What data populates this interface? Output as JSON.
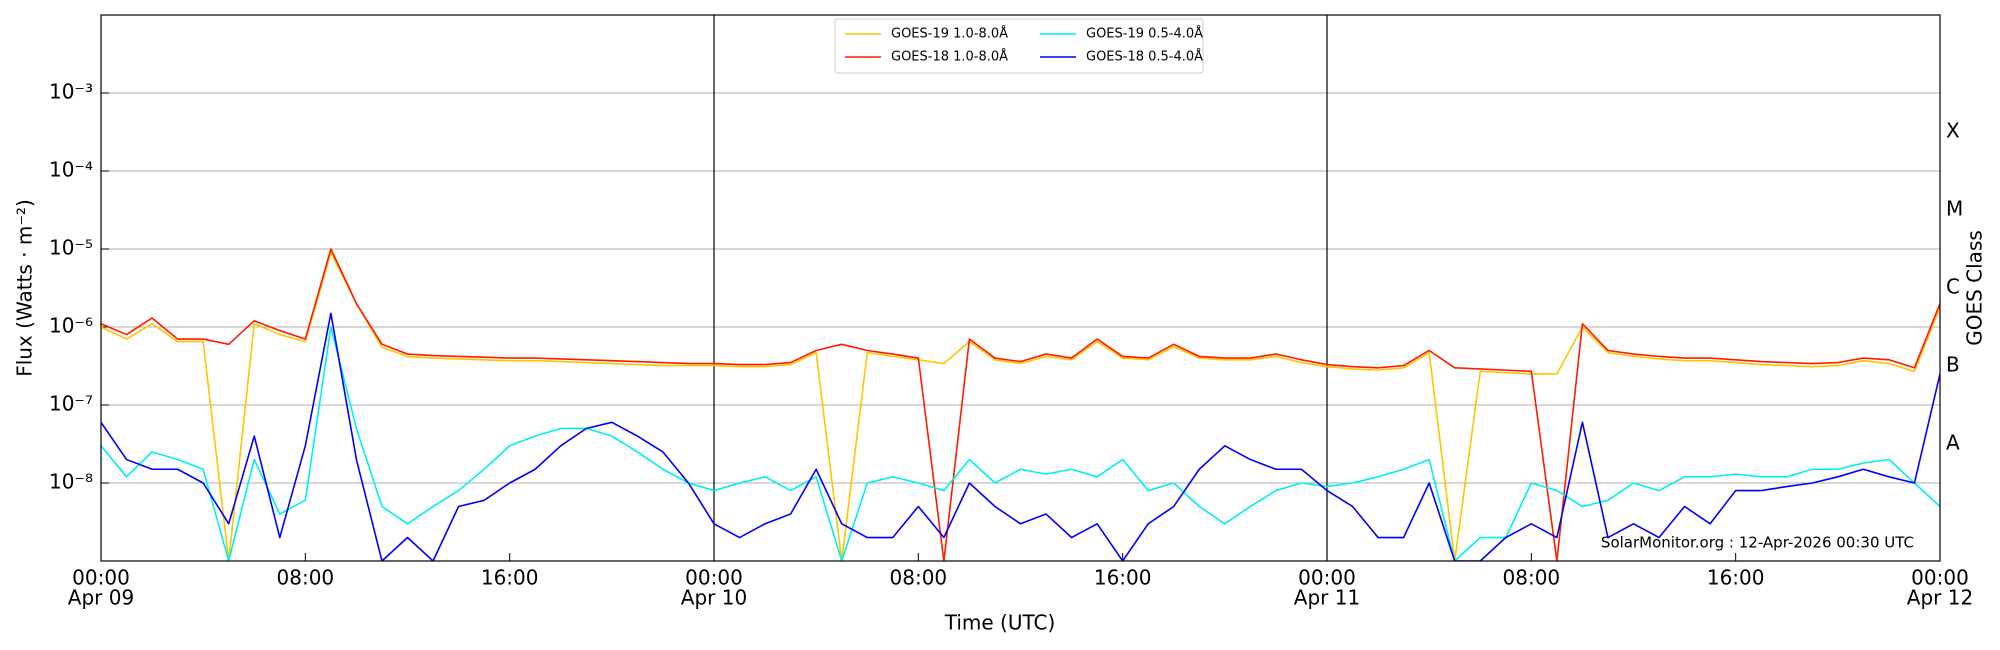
{
  "chart_data": {
    "type": "line",
    "x_label": "Time (UTC)",
    "y_label": "Flux (Watts · m⁻²)",
    "y2_label": "GOES Class",
    "annotation": "SolarMonitor.org : 12-Apr-2026 00:30 UTC",
    "log_scale": true,
    "grid": true,
    "legend_position": "top",
    "xlim": [
      0,
      72
    ],
    "xticks": [
      {
        "value": 0,
        "label": "00:00",
        "date": "Apr 09"
      },
      {
        "value": 8,
        "label": "08:00"
      },
      {
        "value": 16,
        "label": "16:00"
      },
      {
        "value": 24,
        "label": "00:00",
        "date": "Apr 10"
      },
      {
        "value": 32,
        "label": "08:00"
      },
      {
        "value": 40,
        "label": "16:00"
      },
      {
        "value": 48,
        "label": "00:00",
        "date": "Apr 11"
      },
      {
        "value": 56,
        "label": "08:00"
      },
      {
        "value": 64,
        "label": "16:00"
      },
      {
        "value": 72,
        "label": "00:00",
        "date": "Apr 12"
      }
    ],
    "day_lines": [
      24,
      48
    ],
    "ylim": [
      1e-09,
      0.01
    ],
    "yticks": [
      {
        "value": 1e-08,
        "label": "10⁻⁸"
      },
      {
        "value": 1e-07,
        "label": "10⁻⁷"
      },
      {
        "value": 1e-06,
        "label": "10⁻⁶"
      },
      {
        "value": 1e-05,
        "label": "10⁻⁵"
      },
      {
        "value": 0.0001,
        "label": "10⁻⁴"
      },
      {
        "value": 0.001,
        "label": "10⁻³"
      }
    ],
    "y2lim": [
      1e-09,
      0.01
    ],
    "y2ticks": [
      {
        "value": 3.16e-08,
        "label": "A"
      },
      {
        "value": 3.16e-07,
        "label": "B"
      },
      {
        "value": 3.16e-06,
        "label": "C"
      },
      {
        "value": 3.16e-05,
        "label": "M"
      },
      {
        "value": 0.000316,
        "label": "X"
      }
    ],
    "x": [
      0,
      1,
      2,
      3,
      4,
      5,
      6,
      7,
      8,
      9,
      10,
      11,
      12,
      13,
      14,
      15,
      16,
      17,
      18,
      19,
      20,
      21,
      22,
      23,
      24,
      25,
      26,
      27,
      28,
      29,
      30,
      31,
      32,
      33,
      34,
      35,
      36,
      37,
      38,
      39,
      40,
      41,
      42,
      43,
      44,
      45,
      46,
      47,
      48,
      49,
      50,
      51,
      52,
      53,
      54,
      55,
      56,
      57,
      58,
      59,
      60,
      61,
      62,
      63,
      64,
      65,
      66,
      67,
      68,
      69,
      70,
      71,
      72
    ],
    "series": [
      {
        "name": "GOES-19 1.0-8.0Å",
        "color": "#ffc400",
        "values": [
          1e-06,
          7e-07,
          1.1e-06,
          6.5e-07,
          6.5e-07,
          1e-09,
          1.1e-06,
          8e-07,
          6.5e-07,
          9e-06,
          2e-06,
          5.5e-07,
          4.2e-07,
          4e-07,
          3.9e-07,
          3.8e-07,
          3.7e-07,
          3.7e-07,
          3.6e-07,
          3.5e-07,
          3.4e-07,
          3.3e-07,
          3.2e-07,
          3.2e-07,
          3.2e-07,
          3.1e-07,
          3.1e-07,
          3.3e-07,
          4.7e-07,
          1e-09,
          4.7e-07,
          4.2e-07,
          3.8e-07,
          3.4e-07,
          6.5e-07,
          3.8e-07,
          3.4e-07,
          4.2e-07,
          3.8e-07,
          6.5e-07,
          4e-07,
          3.8e-07,
          5.6e-07,
          4e-07,
          3.8e-07,
          3.8e-07,
          4.2e-07,
          3.5e-07,
          3.1e-07,
          2.9e-07,
          2.8e-07,
          3e-07,
          4.7e-07,
          1e-09,
          2.7e-07,
          2.6e-07,
          2.5e-07,
          2.5e-07,
          1e-06,
          4.7e-07,
          4.2e-07,
          3.9e-07,
          3.7e-07,
          3.7e-07,
          3.5e-07,
          3.3e-07,
          3.2e-07,
          3.1e-07,
          3.2e-07,
          3.7e-07,
          3.4e-07,
          2.7e-07,
          1.8e-06
        ]
      },
      {
        "name": "GOES-18 1.0-8.0Å",
        "color": "#ff1a00",
        "values": [
          1.1e-06,
          8e-07,
          1.3e-06,
          7e-07,
          7e-07,
          6e-07,
          1.2e-06,
          9e-07,
          7e-07,
          1e-05,
          2e-06,
          6e-07,
          4.5e-07,
          4.3e-07,
          4.2e-07,
          4.1e-07,
          4e-07,
          4e-07,
          3.9e-07,
          3.8e-07,
          3.7e-07,
          3.6e-07,
          3.5e-07,
          3.4e-07,
          3.4e-07,
          3.3e-07,
          3.3e-07,
          3.5e-07,
          5e-07,
          6e-07,
          5e-07,
          4.5e-07,
          4e-07,
          1e-09,
          7e-07,
          4e-07,
          3.6e-07,
          4.5e-07,
          4e-07,
          7e-07,
          4.2e-07,
          4e-07,
          6e-07,
          4.2e-07,
          4e-07,
          4e-07,
          4.5e-07,
          3.8e-07,
          3.3e-07,
          3.1e-07,
          3e-07,
          3.2e-07,
          5e-07,
          3e-07,
          2.9e-07,
          2.8e-07,
          2.7e-07,
          1e-09,
          1.1e-06,
          5e-07,
          4.5e-07,
          4.2e-07,
          4e-07,
          4e-07,
          3.8e-07,
          3.6e-07,
          3.5e-07,
          3.4e-07,
          3.5e-07,
          4e-07,
          3.8e-07,
          3e-07,
          2e-06
        ]
      },
      {
        "name": "GOES-19 0.5-4.0Å",
        "color": "#00f0f0",
        "values": [
          3e-08,
          1.2e-08,
          2.5e-08,
          2e-08,
          1.5e-08,
          1e-09,
          2e-08,
          4e-09,
          6e-09,
          1e-06,
          5e-08,
          5e-09,
          3e-09,
          5e-09,
          8e-09,
          1.5e-08,
          3e-08,
          4e-08,
          5e-08,
          5e-08,
          4e-08,
          2.5e-08,
          1.5e-08,
          1e-08,
          8e-09,
          1e-08,
          1.2e-08,
          8e-09,
          1.2e-08,
          1e-09,
          1e-08,
          1.2e-08,
          1e-08,
          8e-09,
          2e-08,
          1e-08,
          1.5e-08,
          1.3e-08,
          1.5e-08,
          1.2e-08,
          2e-08,
          8e-09,
          1e-08,
          5e-09,
          3e-09,
          5e-09,
          8e-09,
          1e-08,
          9e-09,
          1e-08,
          1.2e-08,
          1.5e-08,
          2e-08,
          1e-09,
          2e-09,
          2e-09,
          1e-08,
          8e-09,
          5e-09,
          6e-09,
          1e-08,
          8e-09,
          1.2e-08,
          1.2e-08,
          1.3e-08,
          1.2e-08,
          1.2e-08,
          1.5e-08,
          1.5e-08,
          1.8e-08,
          2e-08,
          1e-08,
          5e-09
        ]
      },
      {
        "name": "GOES-18 0.5-4.0Å",
        "color": "#0000ff",
        "values": [
          6e-08,
          2e-08,
          1.5e-08,
          1.5e-08,
          1e-08,
          3e-09,
          4e-08,
          2e-09,
          3e-08,
          1.5e-06,
          2e-08,
          1e-09,
          2e-09,
          1e-09,
          5e-09,
          6e-09,
          1e-08,
          1.5e-08,
          3e-08,
          5e-08,
          6e-08,
          4e-08,
          2.5e-08,
          1e-08,
          3e-09,
          2e-09,
          3e-09,
          4e-09,
          1.5e-08,
          3e-09,
          2e-09,
          2e-09,
          5e-09,
          2e-09,
          1e-08,
          5e-09,
          3e-09,
          4e-09,
          2e-09,
          3e-09,
          1e-09,
          3e-09,
          5e-09,
          1.5e-08,
          3e-08,
          2e-08,
          1.5e-08,
          1.5e-08,
          8e-09,
          5e-09,
          2e-09,
          2e-09,
          1e-08,
          1e-09,
          1e-09,
          2e-09,
          3e-09,
          2e-09,
          6e-08,
          2e-09,
          3e-09,
          2e-09,
          5e-09,
          3e-09,
          8e-09,
          8e-09,
          9e-09,
          1e-08,
          1.2e-08,
          1.5e-08,
          1.2e-08,
          1e-08,
          2.5e-07
        ]
      }
    ]
  }
}
